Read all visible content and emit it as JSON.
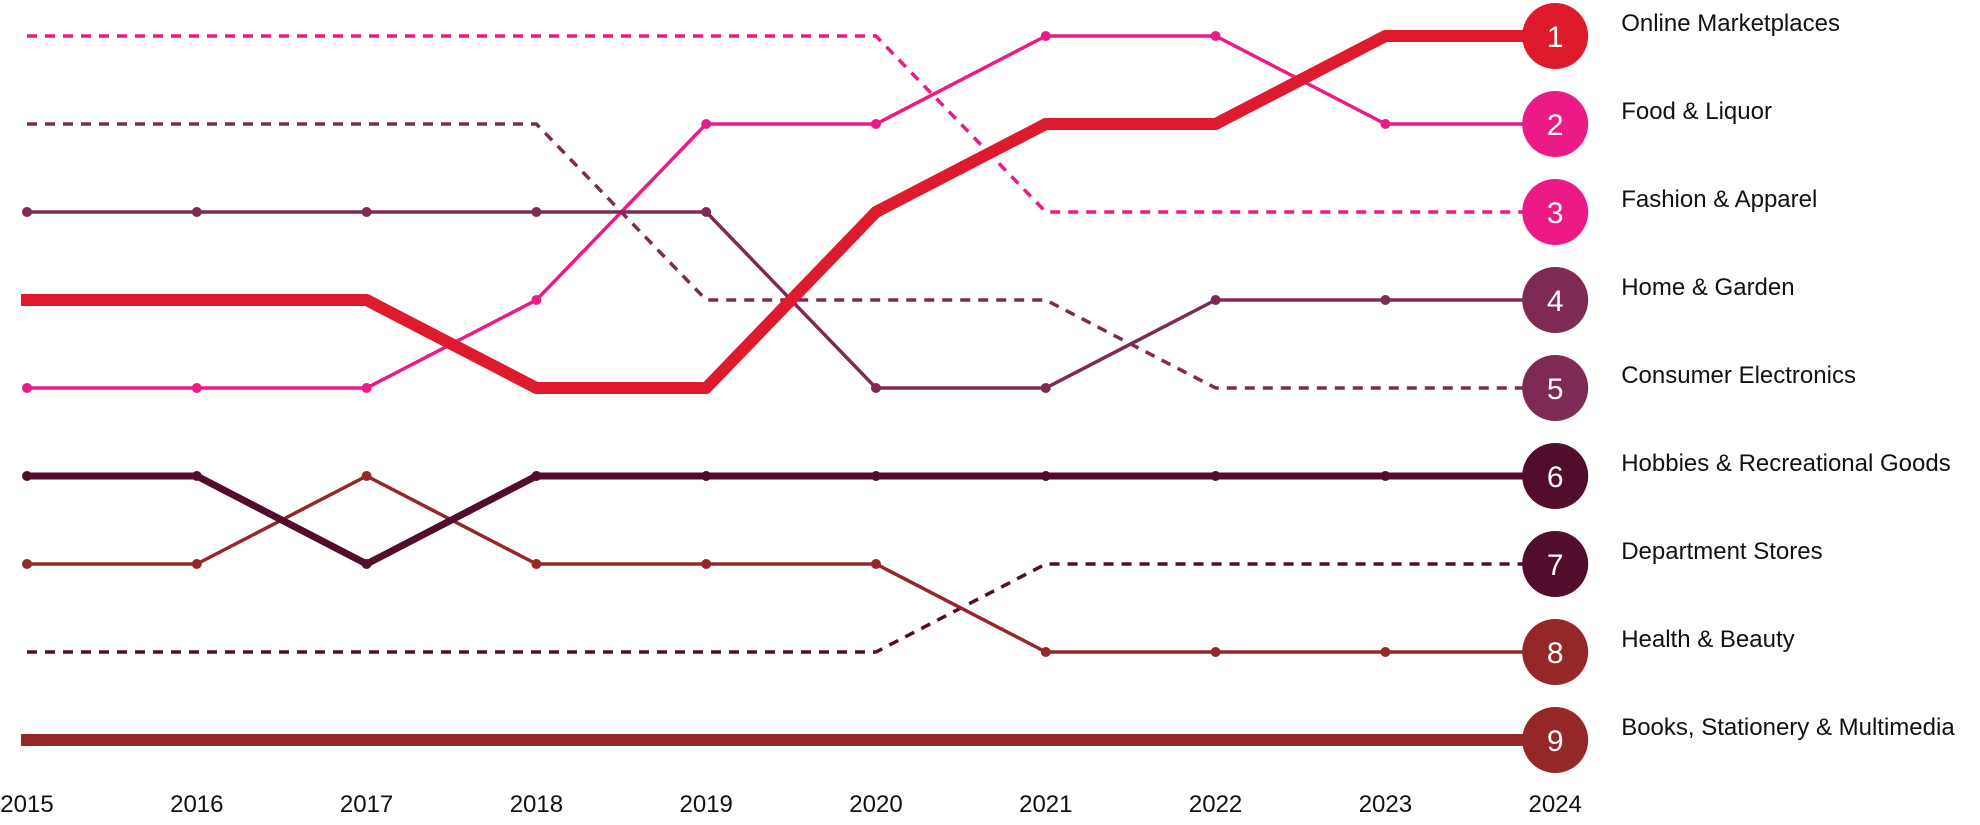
{
  "chart_data": {
    "type": "line",
    "subtype": "bump",
    "x": [
      "2015",
      "2016",
      "2017",
      "2018",
      "2019",
      "2020",
      "2021",
      "2022",
      "2023",
      "2024"
    ],
    "y_scale": "rank",
    "ylim": [
      9,
      1
    ],
    "grid": false,
    "legend": "labels at right end of each line, with rank badges",
    "series": [
      {
        "name": "Online Marketplaces",
        "rank_2024": "1",
        "color": "#de1b2d",
        "style": "bold",
        "ranks": [
          4,
          4,
          4,
          5,
          5,
          3,
          2,
          2,
          1,
          1
        ]
      },
      {
        "name": "Food & Liquor",
        "rank_2024": "2",
        "color": "#ec1a87",
        "style": "solid",
        "ranks": [
          5,
          5,
          5,
          4,
          2,
          2,
          1,
          1,
          2,
          2
        ]
      },
      {
        "name": "Fashion & Apparel",
        "rank_2024": "3",
        "color": "#ec1a87",
        "style": "dashed",
        "ranks": [
          1,
          1,
          1,
          1,
          1,
          1,
          3,
          3,
          3,
          3
        ]
      },
      {
        "name": "Home & Garden",
        "rank_2024": "4",
        "color": "#7e2a55",
        "style": "solid",
        "ranks": [
          3,
          3,
          3,
          3,
          3,
          5,
          5,
          4,
          4,
          4
        ]
      },
      {
        "name": "Consumer Electronics",
        "rank_2024": "5",
        "color": "#7e2a55",
        "style": "dashed",
        "ranks": [
          2,
          2,
          2,
          2,
          4,
          4,
          4,
          5,
          5,
          5
        ]
      },
      {
        "name": "Hobbies & Recreational Goods",
        "rank_2024": "6",
        "color": "#520c2c",
        "style": "medium",
        "ranks": [
          6,
          6,
          7,
          6,
          6,
          6,
          6,
          6,
          6,
          6
        ]
      },
      {
        "name": "Department Stores",
        "rank_2024": "7",
        "color": "#520c2c",
        "style": "dashed",
        "ranks": [
          8,
          8,
          8,
          8,
          8,
          8,
          7,
          7,
          7,
          7
        ]
      },
      {
        "name": "Health & Beauty",
        "rank_2024": "8",
        "color": "#962729",
        "style": "solid",
        "ranks": [
          7,
          7,
          6,
          7,
          7,
          7,
          8,
          8,
          8,
          8
        ]
      },
      {
        "name": "Books, Stationery & Multimedia",
        "rank_2024": "9",
        "color": "#962729",
        "style": "bold",
        "ranks": [
          9,
          9,
          9,
          9,
          9,
          9,
          9,
          9,
          9,
          9
        ]
      }
    ]
  }
}
